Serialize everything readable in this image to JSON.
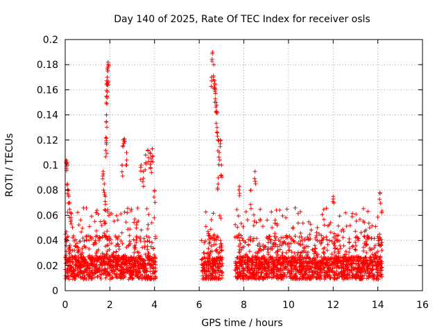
{
  "chart_data": {
    "type": "scatter",
    "title": "Day 140 of 2025, Rate Of TEC Index for receiver osls",
    "xlabel": "GPS time / hours",
    "ylabel": "ROTI / TECUs",
    "xlim": [
      0,
      16
    ],
    "ylim": [
      0,
      0.2
    ],
    "x_ticks": [
      0,
      2,
      4,
      6,
      8,
      10,
      12,
      14,
      16
    ],
    "y_ticks": [
      0,
      0.02,
      0.04,
      0.06,
      0.08,
      0.1,
      0.12,
      0.14,
      0.16,
      0.18,
      0.2
    ],
    "x_tick_labels": [
      "0",
      "2",
      "4",
      "6",
      "8",
      "10",
      "12",
      "14",
      "16"
    ],
    "y_tick_labels": [
      "0",
      "0.02",
      "0.04",
      "0.06",
      "0.08",
      "0.1",
      "0.12",
      "0.14",
      "0.16",
      "0.18",
      "0.2"
    ],
    "grid": true,
    "marker": "+",
    "colors": {
      "points": "#ff0000",
      "grid": "#a0a0a0",
      "axes": "#000000"
    },
    "series": [
      {
        "name": "ROTI",
        "segments": [
          {
            "x_start": 0.0,
            "x_end": 4.05,
            "typical": 0.02
          },
          {
            "x_start": 6.1,
            "x_end": 7.05,
            "typical": 0.02
          },
          {
            "x_start": 7.6,
            "x_end": 14.2,
            "typical": 0.02
          }
        ],
        "highlight_points": [
          {
            "x": 0.05,
            "y": 0.104
          },
          {
            "x": 0.08,
            "y": 0.102
          },
          {
            "x": 0.1,
            "y": 0.085
          },
          {
            "x": 0.15,
            "y": 0.08
          },
          {
            "x": 0.2,
            "y": 0.07
          },
          {
            "x": 0.25,
            "y": 0.062
          },
          {
            "x": 1.7,
            "y": 0.095
          },
          {
            "x": 1.75,
            "y": 0.085
          },
          {
            "x": 1.8,
            "y": 0.075
          },
          {
            "x": 1.82,
            "y": 0.122
          },
          {
            "x": 1.84,
            "y": 0.118
          },
          {
            "x": 1.85,
            "y": 0.14
          },
          {
            "x": 1.86,
            "y": 0.155
          },
          {
            "x": 1.87,
            "y": 0.165
          },
          {
            "x": 1.88,
            "y": 0.17
          },
          {
            "x": 1.9,
            "y": 0.175
          },
          {
            "x": 1.91,
            "y": 0.178
          },
          {
            "x": 1.92,
            "y": 0.182
          },
          {
            "x": 2.6,
            "y": 0.12
          },
          {
            "x": 2.65,
            "y": 0.121
          },
          {
            "x": 2.75,
            "y": 0.11
          },
          {
            "x": 2.55,
            "y": 0.1
          },
          {
            "x": 3.4,
            "y": 0.1
          },
          {
            "x": 3.5,
            "y": 0.095
          },
          {
            "x": 3.6,
            "y": 0.108
          },
          {
            "x": 3.7,
            "y": 0.112
          },
          {
            "x": 3.8,
            "y": 0.11
          },
          {
            "x": 3.85,
            "y": 0.105
          },
          {
            "x": 3.9,
            "y": 0.113
          },
          {
            "x": 4.0,
            "y": 0.08
          },
          {
            "x": 6.55,
            "y": 0.17
          },
          {
            "x": 6.6,
            "y": 0.19
          },
          {
            "x": 6.65,
            "y": 0.18
          },
          {
            "x": 6.68,
            "y": 0.167
          },
          {
            "x": 6.7,
            "y": 0.165
          },
          {
            "x": 6.72,
            "y": 0.16
          },
          {
            "x": 6.75,
            "y": 0.15
          },
          {
            "x": 6.78,
            "y": 0.143
          },
          {
            "x": 6.8,
            "y": 0.13
          },
          {
            "x": 6.85,
            "y": 0.12
          },
          {
            "x": 6.9,
            "y": 0.11
          },
          {
            "x": 6.95,
            "y": 0.12
          },
          {
            "x": 7.0,
            "y": 0.1
          },
          {
            "x": 6.85,
            "y": 0.09
          },
          {
            "x": 8.5,
            "y": 0.095
          },
          {
            "x": 7.8,
            "y": 0.083
          },
          {
            "x": 8.3,
            "y": 0.08
          },
          {
            "x": 12.0,
            "y": 0.075
          },
          {
            "x": 14.1,
            "y": 0.078
          }
        ]
      }
    ]
  }
}
